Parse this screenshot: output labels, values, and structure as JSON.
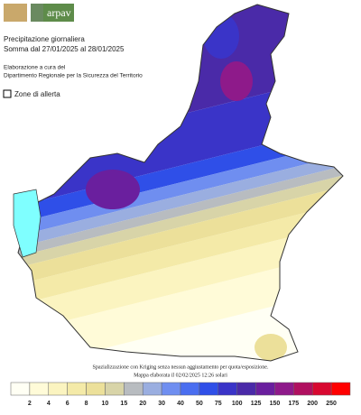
{
  "logo": {
    "text": "arpav"
  },
  "header": {
    "title": "Precipitazione giornaliera",
    "subtitle": "Somma dal 27/01/2025 al 28/01/2025",
    "credit_line1": "Elaborazione a cura del",
    "credit_line2": "Dipartimento Regionale per la Sicurezza del Territorio"
  },
  "toggle": {
    "label": "Zone di allerta"
  },
  "footer": {
    "method": "Spazializzazione con Kriging senza nessun aggiustamento per quota/esposizione.",
    "timestamp": "Mappa elaborata il 02/02/2025 12:26 solari"
  },
  "legend": {
    "colors": [
      "#fffff4",
      "#fffbd8",
      "#fbf4c0",
      "#f4eaa8",
      "#ece09a",
      "#d8d4a8",
      "#b8bcc0",
      "#9aaee0",
      "#6f8ef0",
      "#4a6ef0",
      "#2f4fe8",
      "#3a34c8",
      "#4a2aa8",
      "#6a1f9e",
      "#8e1a8a",
      "#b01060",
      "#d80830",
      "#ff0000"
    ],
    "thresholds": [
      2,
      4,
      6,
      8,
      10,
      15,
      20,
      30,
      40,
      50,
      75,
      100,
      125,
      150,
      175,
      200,
      250
    ]
  }
}
